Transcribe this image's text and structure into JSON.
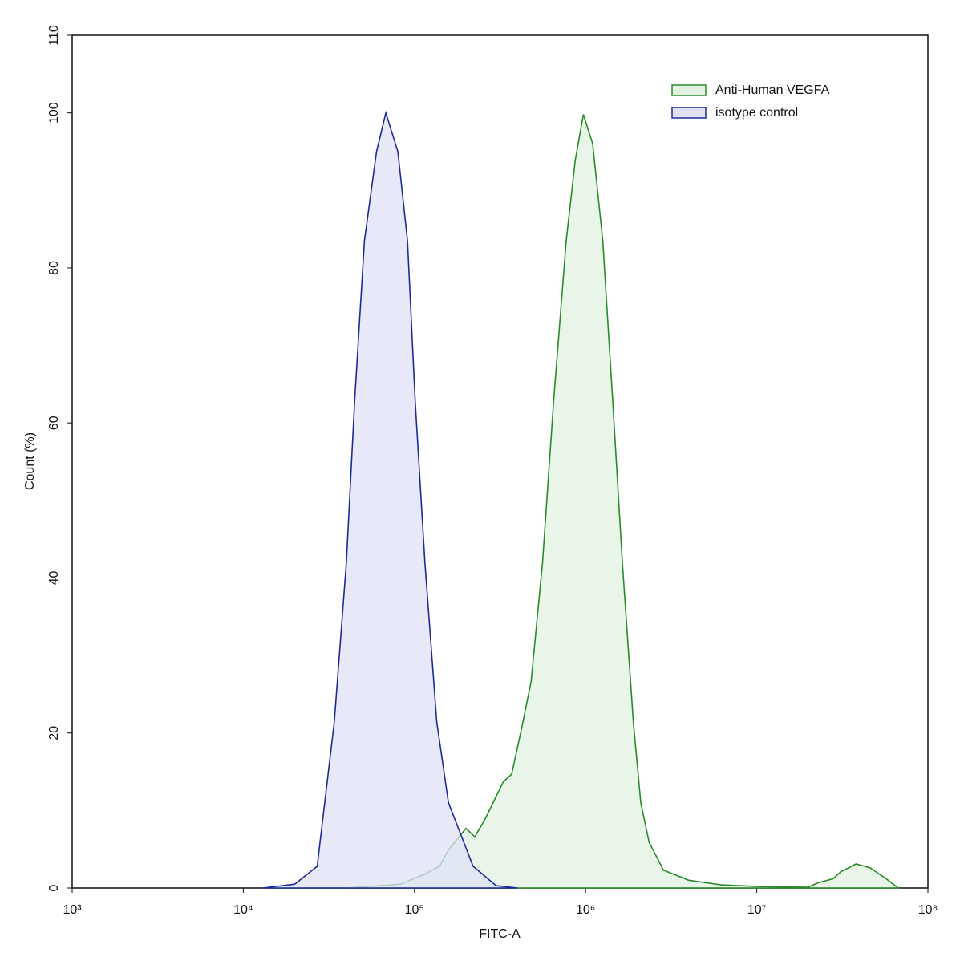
{
  "chart_data": {
    "type": "area",
    "x_label": "FITC-A",
    "y_label": "Count  (%)",
    "xscale": "log",
    "xlim": [
      1000,
      100000000
    ],
    "ylim": [
      0,
      110
    ],
    "xticks": [
      {
        "value": 1000,
        "label": "10³"
      },
      {
        "value": 10000,
        "label": "10⁴"
      },
      {
        "value": 100000,
        "label": "10⁵"
      },
      {
        "value": 1000000,
        "label": "10⁶"
      },
      {
        "value": 10000000,
        "label": "10⁷"
      },
      {
        "value": 100000000,
        "label": "10⁸"
      }
    ],
    "yticks": [
      0,
      20,
      40,
      60,
      80,
      100,
      110
    ],
    "legend": "upper right",
    "series": [
      {
        "name": "Anti-Human VEGFA",
        "color": "#2a8a2a",
        "fill": "#e3f1e3",
        "x": [
          40000,
          83000,
          115000,
          140000,
          158000,
          200000,
          225000,
          260000,
          330000,
          370000,
          430000,
          480000,
          560000,
          650000,
          770000,
          870000,
          970000,
          1100000,
          1260000,
          1440000,
          1640000,
          1900000,
          2100000,
          2350000,
          2850000,
          4000000,
          6200000,
          10000000,
          20000000,
          23000000,
          28000000,
          31000000,
          38000000,
          46000000,
          57000000,
          67000000
        ],
        "values": [
          0,
          0.5,
          1.8,
          2.8,
          4.9,
          7.7,
          6.6,
          9,
          13.7,
          14.7,
          21.4,
          26.6,
          42,
          62.8,
          83.5,
          93.9,
          99.8,
          96,
          83.5,
          62.8,
          42,
          21.4,
          11,
          5.9,
          2.3,
          1,
          0.4,
          0.2,
          0.1,
          0.7,
          1.2,
          2.1,
          3.1,
          2.6,
          1.2,
          0
        ]
      },
      {
        "name": "isotype control",
        "color": "#1f2a9a",
        "fill": "#dfe1f7",
        "x": [
          13000,
          20000,
          27000,
          34000,
          40000,
          44700,
          51000,
          60000,
          68000,
          80000,
          91000,
          101000,
          115000,
          135000,
          158000,
          220000,
          300000,
          400000
        ],
        "values": [
          0,
          0.5,
          2.8,
          21.4,
          42,
          62.8,
          83.5,
          95,
          100,
          95,
          83.5,
          62.8,
          42,
          21.4,
          11,
          2.8,
          0.3,
          0
        ]
      }
    ]
  }
}
